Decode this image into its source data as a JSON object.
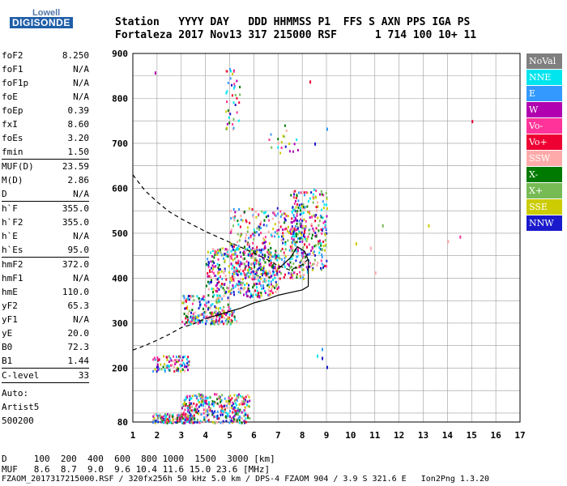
{
  "logo": {
    "top": "Lowell",
    "bottom": "DIGISONDE"
  },
  "header": {
    "line1": "Station   YYYY DAY   DDD HHMMSS P1  FFS S AXN PPS IGA PS",
    "line2": "Fortaleza 2017 Nov13 317 215000 RSF      1 714 100 10+ 11"
  },
  "params": {
    "g1": [
      {
        "k": "foF2",
        "v": "8.250"
      },
      {
        "k": "foF1",
        "v": "N/A"
      },
      {
        "k": "foF1p",
        "v": "N/A"
      },
      {
        "k": "foE",
        "v": "N/A"
      },
      {
        "k": "foEp",
        "v": "0.39"
      },
      {
        "k": "fxI",
        "v": "8.60"
      },
      {
        "k": "foEs",
        "v": "3.20"
      },
      {
        "k": "fmin",
        "v": "1.50"
      }
    ],
    "g2": [
      {
        "k": "MUF(D)",
        "v": "23.59"
      },
      {
        "k": "M(D)",
        "v": "2.86"
      },
      {
        "k": "D",
        "v": "N/A"
      }
    ],
    "g3": [
      {
        "k": "h`F",
        "v": "355.0"
      },
      {
        "k": "h`F2",
        "v": "355.0"
      },
      {
        "k": "h`E",
        "v": "N/A"
      },
      {
        "k": "h`Es",
        "v": "95.0"
      }
    ],
    "g4": [
      {
        "k": "hmF2",
        "v": "372.0"
      },
      {
        "k": "hmF1",
        "v": "N/A"
      },
      {
        "k": "hmE",
        "v": "110.0"
      },
      {
        "k": "yF2",
        "v": "65.3"
      },
      {
        "k": "yF1",
        "v": "N/A"
      },
      {
        "k": "yE",
        "v": "20.0"
      },
      {
        "k": "B0",
        "v": "72.3"
      },
      {
        "k": "B1",
        "v": "1.44"
      }
    ],
    "g5": [
      {
        "k": "C-level",
        "v": "33"
      }
    ]
  },
  "auto": {
    "l1": "Auto:",
    "l2": "Artist5",
    "l3": "500200"
  },
  "legend": [
    {
      "label": "NoVal",
      "color": "#7f7f7f"
    },
    {
      "label": "NNE",
      "color": "#00e5ee"
    },
    {
      "label": "E",
      "color": "#3399ff"
    },
    {
      "label": "W",
      "color": "#b000b0"
    },
    {
      "label": "Vo-",
      "color": "#ff3399"
    },
    {
      "label": "Vo+",
      "color": "#ee0033"
    },
    {
      "label": "SSW",
      "color": "#ffaaaa"
    },
    {
      "label": "X-",
      "color": "#007a00"
    },
    {
      "label": "X+",
      "color": "#77bb55"
    },
    {
      "label": "SSE",
      "color": "#cccc00"
    },
    {
      "label": "NNW",
      "color": "#1a1acc"
    }
  ],
  "footer": {
    "d_line": "D     100  200  400  600  800 1000  1500  3000 [km]",
    "muf_line": "MUF   8.6  8.7  9.0  9.6 10.4 11.6 15.0 23.6 [MHz]",
    "file_line": "FZAOM_2017317215000.RSF / 320fx256h 50 kHz 5.0 km / DPS-4 FZAOM 904 / 3.9 S 321.6 E   Ion2Png 1.3.20"
  },
  "chart_data": {
    "type": "scatter",
    "xlim": [
      1,
      17
    ],
    "ylim": [
      80,
      900
    ],
    "xticks": [
      "1",
      "2",
      "3",
      "4",
      "5",
      "6",
      "7",
      "8",
      "9",
      "10",
      "11",
      "12",
      "13",
      "14",
      "15",
      "16",
      "17"
    ],
    "yticks": [
      "80",
      "200",
      "300",
      "400",
      "500",
      "600",
      "700",
      "800",
      "900"
    ],
    "grid": true,
    "traces": [
      {
        "name": "virtual-height trace (dashed)",
        "style": "dashed",
        "x": [
          1.0,
          1.5,
          2.0,
          2.5,
          3.0,
          3.5,
          4.0,
          4.5,
          5.0,
          5.5,
          6.0,
          6.5,
          7.0,
          7.5,
          8.0,
          8.3
        ],
        "y": [
          630,
          595,
          570,
          548,
          532,
          518,
          504,
          492,
          480,
          468,
          456,
          443,
          428,
          418,
          430,
          445
        ]
      },
      {
        "name": "lower trace (dashed)",
        "style": "dashed",
        "x": [
          1.0,
          1.5,
          2.0,
          2.5,
          3.0,
          3.5,
          4.0
        ],
        "y": [
          240,
          250,
          262,
          275,
          290,
          298,
          310
        ]
      },
      {
        "name": "profile trace (solid)",
        "style": "solid",
        "x": [
          4.0,
          4.5,
          5.0,
          5.5,
          6.0,
          6.5,
          7.0,
          7.5,
          8.0,
          8.25,
          8.25,
          8.1,
          7.8,
          7.5,
          7.2,
          7.0
        ],
        "y": [
          310,
          318,
          326,
          334,
          345,
          352,
          362,
          368,
          374,
          382,
          440,
          460,
          470,
          445,
          430,
          420
        ]
      }
    ],
    "clusters": [
      {
        "x": [
          1.8,
          3.5
        ],
        "y": [
          80,
          100
        ]
      },
      {
        "x": [
          3.0,
          5.8
        ],
        "y": [
          80,
          145
        ]
      },
      {
        "x": [
          1.8,
          3.3
        ],
        "y": [
          195,
          230
        ]
      },
      {
        "x": [
          3.2,
          5.3
        ],
        "y": [
          300,
          330
        ]
      },
      {
        "x": [
          3.0,
          5.0
        ],
        "y": [
          300,
          365
        ]
      },
      {
        "x": [
          4.0,
          7.0
        ],
        "y": [
          360,
          470
        ]
      },
      {
        "x": [
          5.0,
          8.2
        ],
        "y": [
          400,
          560
        ]
      },
      {
        "x": [
          7.5,
          9.0
        ],
        "y": [
          420,
          600
        ]
      },
      {
        "x": [
          4.8,
          5.4
        ],
        "y": [
          720,
          870
        ]
      },
      {
        "x": [
          6.6,
          7.8
        ],
        "y": [
          680,
          750
        ]
      }
    ],
    "isolated_points": [
      {
        "x": 1.9,
        "y": 860
      },
      {
        "x": 8.3,
        "y": 840
      },
      {
        "x": 9.0,
        "y": 735
      },
      {
        "x": 8.5,
        "y": 702
      },
      {
        "x": 10.2,
        "y": 480
      },
      {
        "x": 10.8,
        "y": 470
      },
      {
        "x": 11.3,
        "y": 520
      },
      {
        "x": 11.0,
        "y": 415
      },
      {
        "x": 13.2,
        "y": 520
      },
      {
        "x": 14.0,
        "y": 485
      },
      {
        "x": 14.5,
        "y": 495
      },
      {
        "x": 15.0,
        "y": 752
      },
      {
        "x": 8.8,
        "y": 245
      },
      {
        "x": 9.0,
        "y": 205
      },
      {
        "x": 8.8,
        "y": 225
      },
      {
        "x": 8.6,
        "y": 230
      }
    ]
  }
}
